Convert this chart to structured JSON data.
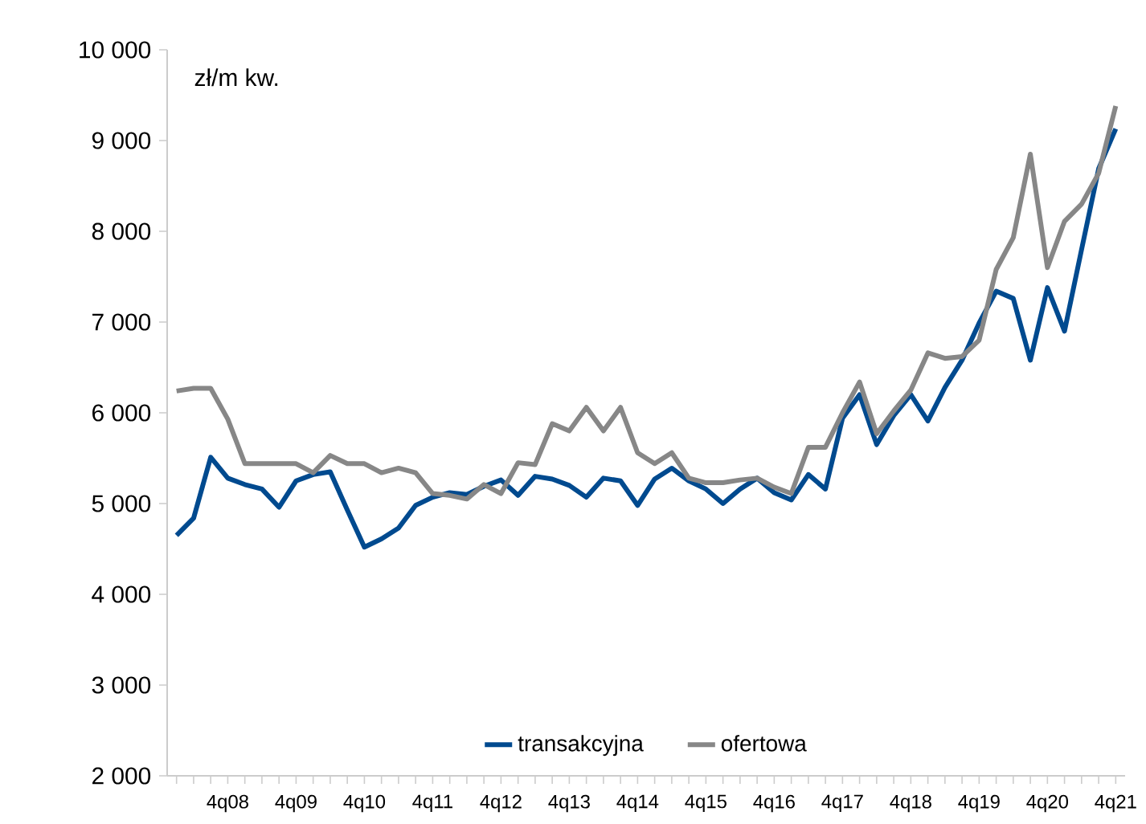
{
  "chart_data": {
    "type": "line",
    "annotations": [
      "zł/m kw."
    ],
    "categories": [
      null,
      null,
      null,
      "4q08",
      null,
      null,
      null,
      "4q09",
      null,
      null,
      null,
      "4q10",
      null,
      null,
      null,
      "4q11",
      null,
      null,
      null,
      "4q12",
      null,
      null,
      null,
      "4q13",
      null,
      null,
      null,
      "4q14",
      null,
      null,
      null,
      "4q15",
      null,
      null,
      null,
      "4q16",
      null,
      null,
      null,
      "4q17",
      null,
      null,
      null,
      "4q18",
      null,
      null,
      null,
      "4q19",
      null,
      null,
      null,
      "4q20",
      null,
      null,
      null,
      "4q21"
    ],
    "series": [
      {
        "name": "transakcyjna",
        "color": "#004a8f",
        "values": [
          4650,
          4840,
          5510,
          5280,
          5210,
          5160,
          4960,
          5250,
          5320,
          5350,
          4930,
          4520,
          4610,
          4730,
          4980,
          5070,
          5120,
          5100,
          5190,
          5260,
          5090,
          5300,
          5270,
          5200,
          5070,
          5280,
          5250,
          4980,
          5270,
          5390,
          5250,
          5160,
          5000,
          5160,
          5280,
          5120,
          5040,
          5320,
          5160,
          5940,
          6200,
          5650,
          5970,
          6200,
          5910,
          6280,
          6580,
          6990,
          7340,
          7260,
          6580,
          7380,
          6900,
          7800,
          8690,
          9130
        ]
      },
      {
        "name": "ofertowa",
        "color": "#878787",
        "values": [
          6240,
          6270,
          6270,
          5930,
          5440,
          5440,
          5440,
          5440,
          5340,
          5530,
          5440,
          5440,
          5340,
          5390,
          5340,
          5110,
          5090,
          5050,
          5210,
          5110,
          5450,
          5430,
          5880,
          5800,
          6060,
          5800,
          6060,
          5560,
          5440,
          5560,
          5280,
          5230,
          5230,
          5260,
          5280,
          5180,
          5110,
          5620,
          5620,
          6000,
          6340,
          5770,
          6020,
          6250,
          6660,
          6600,
          6620,
          6800,
          7580,
          7930,
          8850,
          7600,
          8110,
          8300,
          8640,
          9380
        ]
      }
    ],
    "ylim": [
      2000,
      10000
    ],
    "yticks": [
      {
        "value": 2000,
        "label": "2 000"
      },
      {
        "value": 3000,
        "label": "3 000"
      },
      {
        "value": 4000,
        "label": "4 000"
      },
      {
        "value": 5000,
        "label": "5 000"
      },
      {
        "value": 6000,
        "label": "6 000"
      },
      {
        "value": 7000,
        "label": "7 000"
      },
      {
        "value": 8000,
        "label": "8 000"
      },
      {
        "value": 9000,
        "label": "9 000"
      },
      {
        "value": 10000,
        "label": "10 000"
      }
    ],
    "grid": false,
    "legend": "bottom",
    "marker": "none",
    "line_style": "solid"
  }
}
